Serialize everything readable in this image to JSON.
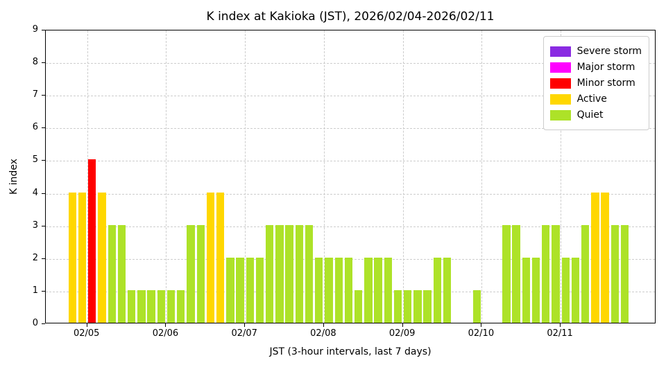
{
  "chart_data": {
    "type": "bar",
    "title": "K index at Kakioka (JST), 2026/02/04-2026/02/11",
    "xlabel": "JST (3-hour intervals, last 7 days)",
    "ylabel": "K index",
    "ylim": [
      0,
      9
    ],
    "yticks": [
      0,
      1,
      2,
      3,
      4,
      5,
      6,
      7,
      8,
      9
    ],
    "x_tick_labels": [
      "02/05",
      "02/06",
      "02/07",
      "02/08",
      "02/09",
      "02/10",
      "02/11"
    ],
    "interval_hours": 3,
    "grid": true,
    "legend_position": "upper right",
    "legend": [
      {
        "label": "Severe storm",
        "color": "#8A2BE2"
      },
      {
        "label": "Major storm",
        "color": "#FF00FF"
      },
      {
        "label": "Minor storm",
        "color": "#FF0000"
      },
      {
        "label": "Active",
        "color": "#FFD700"
      },
      {
        "label": "Quiet",
        "color": "#ADE228"
      }
    ],
    "days": [
      {
        "date": "02/04",
        "k_values": [
          null,
          null,
          null,
          null,
          null,
          null,
          4,
          4
        ]
      },
      {
        "date": "02/05",
        "k_values": [
          5,
          4,
          3,
          3,
          1,
          1,
          1,
          1
        ]
      },
      {
        "date": "02/06",
        "k_values": [
          1,
          1,
          3,
          3,
          4,
          4,
          2,
          2
        ]
      },
      {
        "date": "02/07",
        "k_values": [
          2,
          2,
          3,
          3,
          3,
          3,
          3,
          2
        ]
      },
      {
        "date": "02/08",
        "k_values": [
          2,
          2,
          2,
          1,
          2,
          2,
          2,
          1
        ]
      },
      {
        "date": "02/09",
        "k_values": [
          1,
          1,
          1,
          2,
          2,
          0,
          0,
          1
        ]
      },
      {
        "date": "02/10",
        "k_values": [
          0,
          0,
          3,
          3,
          2,
          2,
          3,
          3
        ]
      },
      {
        "date": "02/11",
        "k_values": [
          2,
          2,
          3,
          4,
          4,
          3,
          3,
          null
        ]
      }
    ]
  }
}
